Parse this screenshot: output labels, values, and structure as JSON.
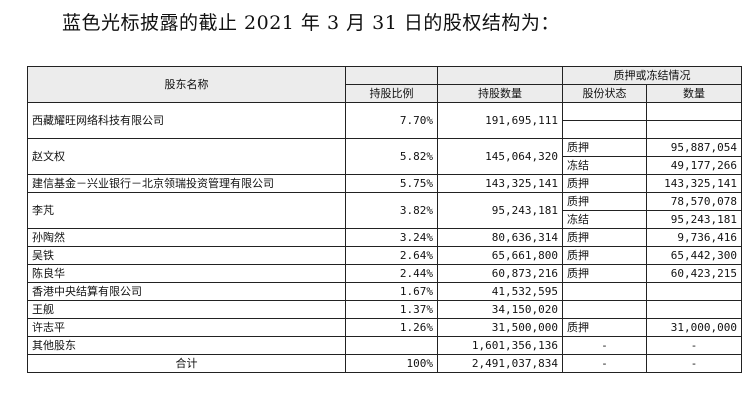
{
  "title": "蓝色光标披露的截止 2021 年 3 月 31 日的股权结构为：",
  "headers": {
    "name": "股东名称",
    "ratio": "持股比例",
    "quantity": "持股数量",
    "pledge_group": "质押或冻结情况",
    "status": "股份状态",
    "amount": "数量"
  },
  "rows": [
    {
      "name": "西藏耀旺网络科技有限公司",
      "ratio": "7.70%",
      "quantity": "191,695,111",
      "status": [
        "",
        ""
      ],
      "amount": [
        "",
        ""
      ]
    },
    {
      "name": "赵文权",
      "ratio": "5.82%",
      "quantity": "145,064,320",
      "status": [
        "质押",
        "冻结"
      ],
      "amount": [
        "95,887,054",
        "49,177,266"
      ]
    },
    {
      "name": "建信基金－兴业银行－北京领瑞投资管理有限公司",
      "ratio": "5.75%",
      "quantity": "143,325,141",
      "status": [
        "质押"
      ],
      "amount": [
        "143,325,141"
      ]
    },
    {
      "name": "李芃",
      "ratio": "3.82%",
      "quantity": "95,243,181",
      "status": [
        "质押",
        "冻结"
      ],
      "amount": [
        "78,570,078",
        "95,243,181"
      ]
    },
    {
      "name": "孙陶然",
      "ratio": "3.24%",
      "quantity": "80,636,314",
      "status": [
        "质押"
      ],
      "amount": [
        "9,736,416"
      ]
    },
    {
      "name": "吴铁",
      "ratio": "2.64%",
      "quantity": "65,661,800",
      "status": [
        "质押"
      ],
      "amount": [
        "65,442,300"
      ]
    },
    {
      "name": "陈良华",
      "ratio": "2.44%",
      "quantity": "60,873,216",
      "status": [
        "质押"
      ],
      "amount": [
        "60,423,215"
      ]
    },
    {
      "name": "香港中央结算有限公司",
      "ratio": "1.67%",
      "quantity": "41,532,595",
      "status": [
        ""
      ],
      "amount": [
        ""
      ]
    },
    {
      "name": "王舰",
      "ratio": "1.37%",
      "quantity": "34,150,020",
      "status": [
        ""
      ],
      "amount": [
        ""
      ]
    },
    {
      "name": "许志平",
      "ratio": "1.26%",
      "quantity": "31,500,000",
      "status": [
        "质押"
      ],
      "amount": [
        "31,000,000"
      ]
    },
    {
      "name": "其他股东",
      "ratio": "",
      "quantity": "1,601,356,136",
      "status": [
        "-"
      ],
      "amount": [
        "-"
      ]
    },
    {
      "name": "合计",
      "ratio": "100%",
      "quantity": "2,491,037,834",
      "status": [
        "-"
      ],
      "amount": [
        "-"
      ]
    }
  ]
}
